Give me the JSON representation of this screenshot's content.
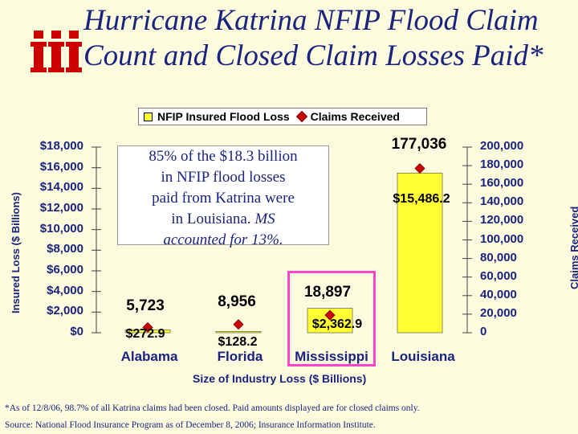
{
  "title": {
    "line1": "Hurricane Katrina NFIP Flood Claim",
    "line2": "Count and Closed Claim Losses Paid*"
  },
  "note": {
    "line1": "85% of the $18.3 billion",
    "line2": "in NFIP flood losses",
    "line3": "paid from Katrina were",
    "line4": "in Louisiana.",
    "italic": "MS",
    "line5": "accounted for 13%."
  },
  "footnote": "*As of 12/8/06, 98.7% of all Katrina claims had been closed. Paid amounts displayed are for closed claims only.",
  "source": "Source: National Flood Insurance Program as of December 8, 2006; Insurance Information Institute.",
  "colors": {
    "bar": "#ffff33",
    "marker": "#cc0000",
    "text": "#1a237e",
    "highlight": "#ff44cc",
    "logo": "#cc0000"
  },
  "chart_data": {
    "type": "bar",
    "categories": [
      "Alabama",
      "Florida",
      "Mississippi",
      "Louisiana"
    ],
    "series": [
      {
        "name": "NFIP Insured Flood Loss",
        "axis": "left",
        "values": [
          272.9,
          128.2,
          2362.9,
          15486.2
        ],
        "labels": [
          "$272.9",
          "$128.2",
          "$2,362.9",
          "$15,486.2"
        ]
      },
      {
        "name": "Claims Received",
        "axis": "right",
        "type": "scatter",
        "values": [
          5723,
          8956,
          18897,
          177036
        ],
        "labels": [
          "5,723",
          "8,956",
          "18,897",
          "177,036"
        ]
      }
    ],
    "xlabel": "Size of Industry Loss ($ Billions)",
    "ylabel": "Insured Loss ($ Billions)",
    "y2label": "Claims Received",
    "ylim": [
      0,
      18000
    ],
    "y2lim": [
      0,
      200000
    ],
    "yticks": [
      "$0",
      "$2,000",
      "$4,000",
      "$6,000",
      "$8,000",
      "$10,000",
      "$12,000",
      "$14,000",
      "$16,000",
      "$18,000"
    ],
    "y2ticks": [
      "0",
      "20,000",
      "40,000",
      "60,000",
      "80,000",
      "100,000",
      "120,000",
      "140,000",
      "160,000",
      "180,000",
      "200,000"
    ],
    "highlight": "Mississippi"
  }
}
